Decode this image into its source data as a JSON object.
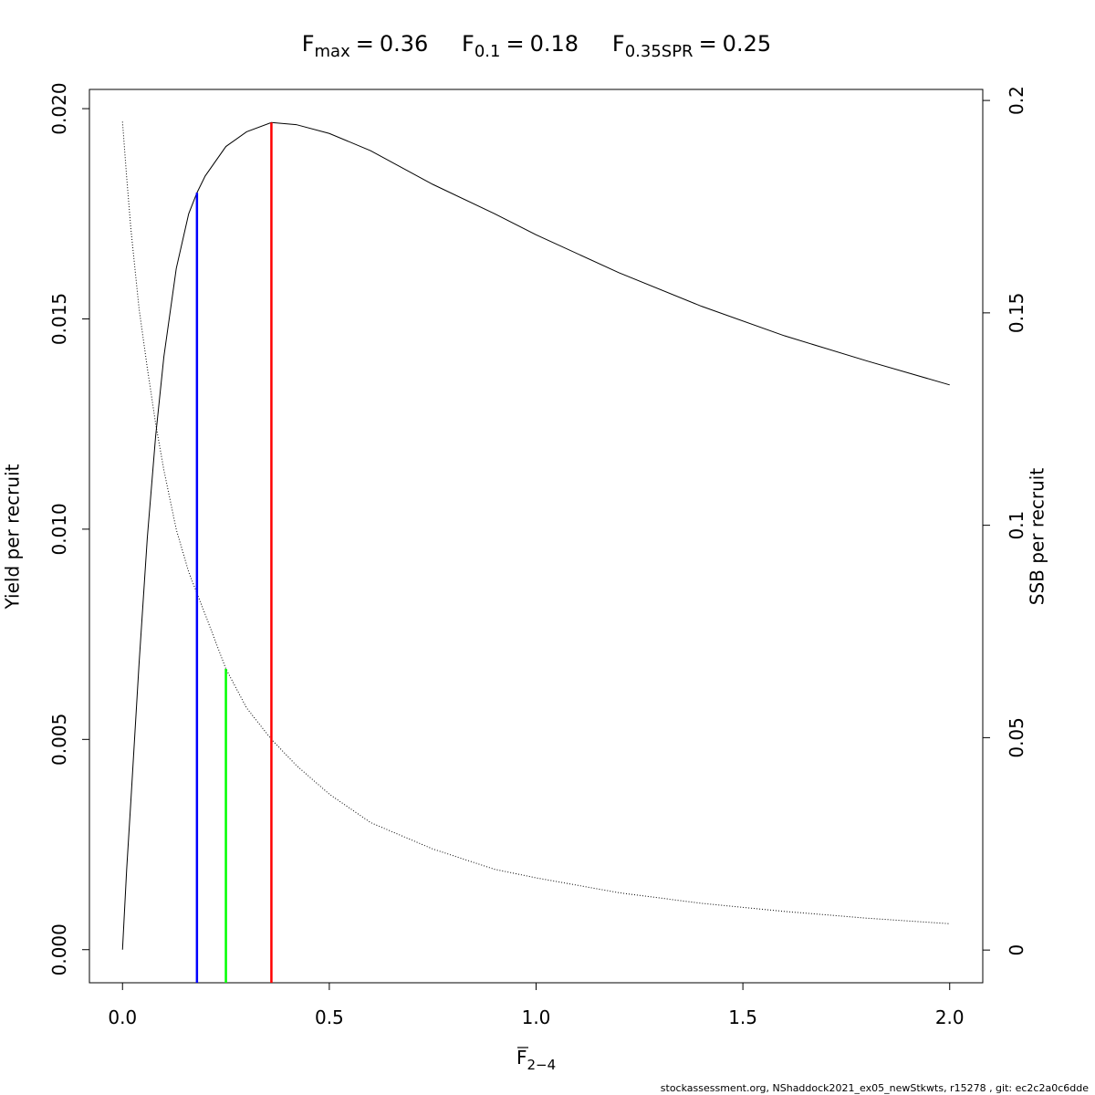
{
  "chart_data": {
    "type": "line",
    "references": [
      {
        "label": "F",
        "subscript": "max",
        "equals": "=",
        "value": 0.36,
        "y": 0.01967,
        "axis": "y",
        "color": "#ff0000"
      },
      {
        "label": "F",
        "subscript": "0.1",
        "equals": "=",
        "value": 0.18,
        "y": 0.018,
        "axis": "y",
        "color": "#0000ff"
      },
      {
        "label": "F",
        "subscript": "0.35SPR",
        "equals": "=",
        "value": 0.25,
        "y": 0.0662,
        "axis": "y2",
        "color": "#00ff00"
      }
    ],
    "xlabel": {
      "text": "F",
      "subscript": "2−4"
    },
    "ylabel": "Yield per recruit",
    "y2label": "SSB per recruit",
    "x": [
      0,
      0.01,
      0.02,
      0.04,
      0.06,
      0.08,
      0.1,
      0.13,
      0.16,
      0.18,
      0.2,
      0.25,
      0.3,
      0.36,
      0.42,
      0.5,
      0.6,
      0.75,
      0.9,
      1.0,
      1.2,
      1.4,
      1.6,
      1.8,
      2.0
    ],
    "series": [
      {
        "name": "Yield per recruit",
        "color": "#000000",
        "style": "solid",
        "values": [
          0,
          0.0019,
          0.0035,
          0.0068,
          0.0098,
          0.0122,
          0.0141,
          0.0162,
          0.0175,
          0.018,
          0.0184,
          0.0191,
          0.01945,
          0.01967,
          0.01962,
          0.01941,
          0.019,
          0.0182,
          0.0175,
          0.017,
          0.0161,
          0.0153,
          0.0146,
          0.014,
          0.01343
        ]
      },
      {
        "name": "SSB per recruit",
        "color": "#000000",
        "style": "dotted",
        "axis": "y2",
        "values": [
          0.195,
          0.182,
          0.17,
          0.151,
          0.137,
          0.124,
          0.113,
          0.099,
          0.089,
          0.084,
          0.079,
          0.0662,
          0.057,
          0.0496,
          0.0435,
          0.0367,
          0.03,
          0.0238,
          0.019,
          0.017,
          0.0135,
          0.011,
          0.0091,
          0.0075,
          0.0062
        ]
      }
    ],
    "xlim": [
      -0.08,
      2.08
    ],
    "xticks": [
      {
        "value": 0,
        "label": "0.0"
      },
      0.5,
      {
        "value": 1,
        "label": "1.0"
      },
      1.5,
      {
        "value": 2,
        "label": "2.0"
      }
    ],
    "ylim": [
      -0.000787,
      0.020457
    ],
    "yticks": [
      {
        "value": 0,
        "label": "0.000"
      },
      {
        "value": 0.005,
        "label": "0.005"
      },
      {
        "value": 0.01,
        "label": "0.010"
      },
      {
        "value": 0.015,
        "label": "0.015"
      },
      {
        "value": 0.02,
        "label": "0.020"
      }
    ],
    "y2lim": [
      -0.0077,
      0.2026
    ],
    "y2ticks": [
      0,
      0.05,
      0.1,
      0.15,
      0.2
    ],
    "footer": "stockassessment.org, NShaddock2021_ex05_newStkwts, r15278 , git: ec2c2a0c6dde"
  }
}
